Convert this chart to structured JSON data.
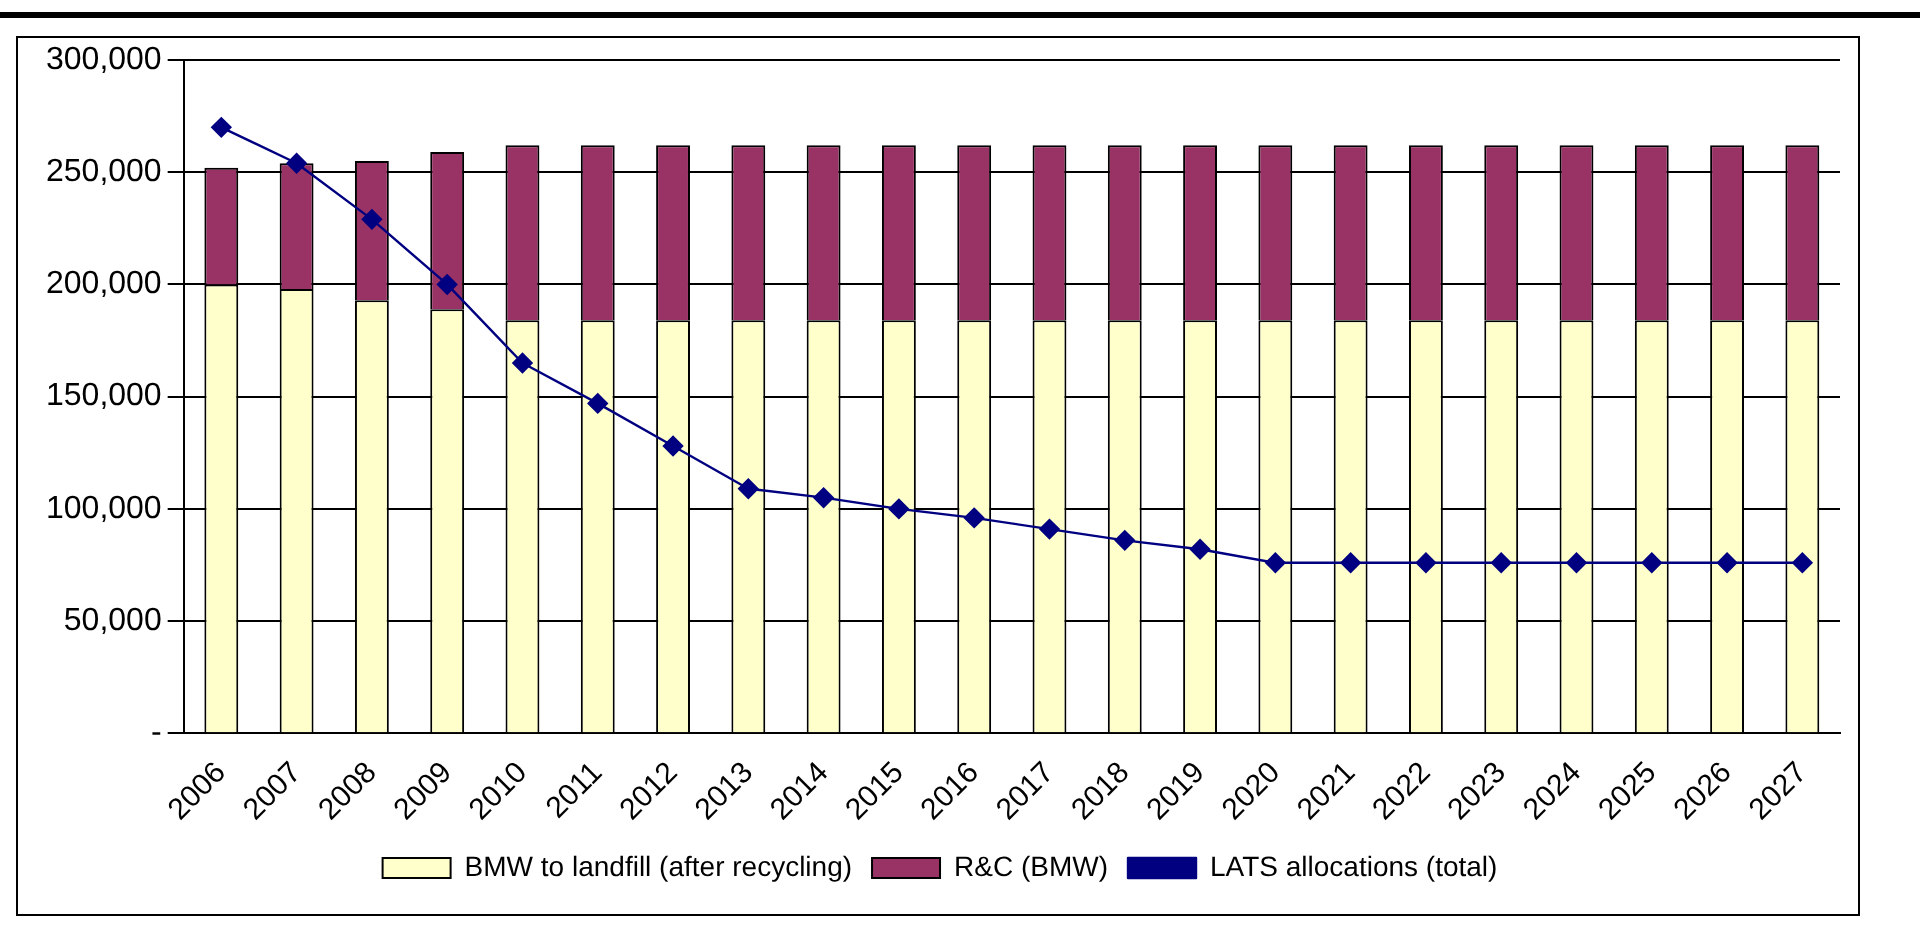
{
  "chart_data": {
    "type": "bar",
    "stacked": true,
    "categories": [
      "2006",
      "2007",
      "2008",
      "2009",
      "2010",
      "2011",
      "2012",
      "2013",
      "2014",
      "2015",
      "2016",
      "2017",
      "2018",
      "2019",
      "2020",
      "2021",
      "2022",
      "2023",
      "2024",
      "2025",
      "2026",
      "2027"
    ],
    "series": [
      {
        "name": "BMW to landfill (after recycling)",
        "color": "#ffffcc",
        "values": [
          200000,
          198000,
          193000,
          189000,
          184000,
          184000,
          184000,
          184000,
          184000,
          184000,
          184000,
          184000,
          184000,
          184000,
          184000,
          184000,
          184000,
          184000,
          184000,
          184000,
          184000,
          184000
        ]
      },
      {
        "name": "R&C (BMW)",
        "color": "#993366",
        "values": [
          52000,
          56000,
          62000,
          70000,
          78000,
          78000,
          78000,
          78000,
          78000,
          78000,
          78000,
          78000,
          78000,
          78000,
          78000,
          78000,
          78000,
          78000,
          78000,
          78000,
          78000,
          78000
        ]
      },
      {
        "name": "LATS allocations (total)",
        "type": "line",
        "color": "#000080",
        "values": [
          270000,
          254000,
          229000,
          200000,
          165000,
          147000,
          128000,
          109000,
          105000,
          100000,
          96000,
          91000,
          86000,
          82000,
          76000,
          76000,
          76000,
          76000,
          76000,
          76000,
          76000,
          76000
        ]
      }
    ],
    "ylim": [
      0,
      300000
    ],
    "yticks": [
      {
        "value": 0,
        "label": "-"
      },
      {
        "value": 50000,
        "label": "50,000"
      },
      {
        "value": 100000,
        "label": "100,000"
      },
      {
        "value": 150000,
        "label": "150,000"
      },
      {
        "value": 200000,
        "label": "200,000"
      },
      {
        "value": 250000,
        "label": "250,000"
      },
      {
        "value": 300000,
        "label": "300,000"
      }
    ],
    "grid": "y",
    "legend": "bottom",
    "marker": "diamond",
    "line_style": "solid"
  }
}
